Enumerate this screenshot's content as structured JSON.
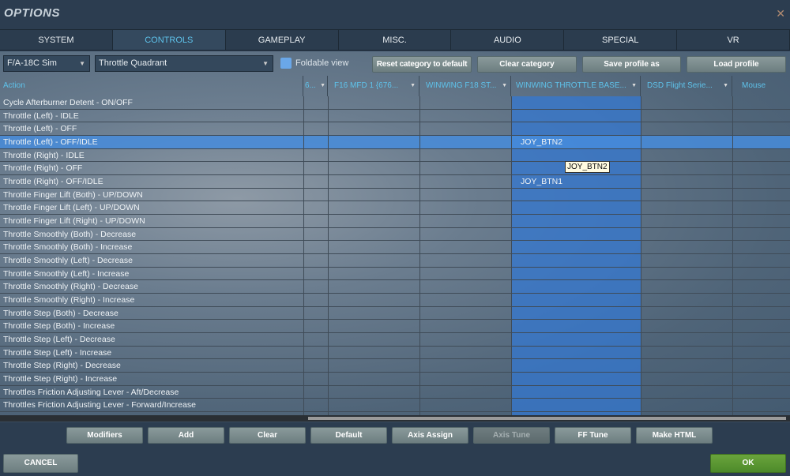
{
  "window": {
    "title": "OPTIONS",
    "close_icon": "close-icon"
  },
  "tabs": [
    "SYSTEM",
    "CONTROLS",
    "GAMEPLAY",
    "MISC.",
    "AUDIO",
    "SPECIAL",
    "VR"
  ],
  "active_tab": "CONTROLS",
  "toolbar": {
    "aircraft": "F/A-18C Sim",
    "category": "Throttle Quadrant",
    "foldable_label": "Foldable view",
    "foldable_checked": false,
    "reset": "Reset category to default",
    "clear": "Clear category",
    "save": "Save profile as",
    "load": "Load profile"
  },
  "columns": [
    "Action",
    "6...",
    "F16 MFD 1 {676...",
    "WINWING F18 ST...",
    "WINWING THROTTLE BASE...",
    "DSD Flight Serie...",
    "Mouse"
  ],
  "rows": [
    "Cycle Afterburner Detent - ON/OFF",
    "Throttle (Left) - IDLE",
    "Throttle (Left) - OFF",
    "Throttle (Left) - OFF/IDLE",
    "Throttle (Right) - IDLE",
    "Throttle (Right) - OFF",
    "Throttle (Right) - OFF/IDLE",
    "Throttle Finger Lift (Both) - UP/DOWN",
    "Throttle Finger Lift (Left) - UP/DOWN",
    "Throttle Finger Lift (Right) - UP/DOWN",
    "Throttle Smoothly (Both) - Decrease",
    "Throttle Smoothly (Both) - Increase",
    "Throttle Smoothly (Left) - Decrease",
    "Throttle Smoothly (Left) - Increase",
    "Throttle Smoothly (Right) - Decrease",
    "Throttle Smoothly (Right) - Increase",
    "Throttle Step (Both) - Decrease",
    "Throttle Step (Both) - Increase",
    "Throttle Step (Left) - Decrease",
    "Throttle Step (Left) - Increase",
    "Throttle Step (Right) - Decrease",
    "Throttle Step (Right) - Increase",
    "Throttles Friction Adjusting Lever - Aft/Decrease",
    "Throttles Friction Adjusting Lever - Forward/Increase"
  ],
  "bindings": {
    "row3": "JOY_BTN2",
    "row6": "JOY_BTN1"
  },
  "tooltip": "JOY_BTN2",
  "actions": [
    "Modifiers",
    "Add",
    "Clear",
    "Default",
    "Axis Assign",
    "Axis Tune",
    "FF Tune",
    "Make HTML"
  ],
  "footer": {
    "cancel": "CANCEL",
    "ok": "OK"
  },
  "colors": {
    "accent": "#5ec2ea",
    "ok": "#5a9a33",
    "selected_row": "#4a8ddc"
  }
}
